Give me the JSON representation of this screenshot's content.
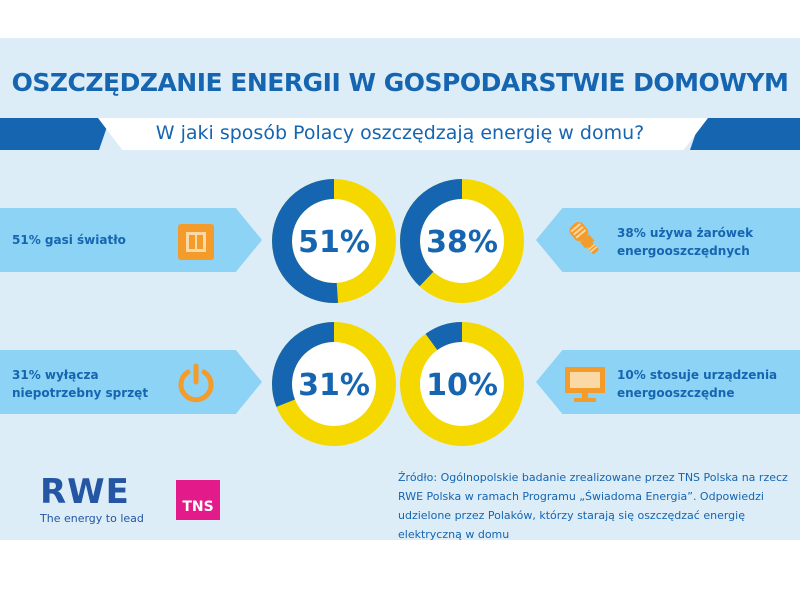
{
  "title": "OSZCZĘDZANIE ENERGII W GOSPODARSTWIE DOMOWYM",
  "subtitle": "W jaki sposób Polacy oszczędzają energię w domu?",
  "colors": {
    "accent_blue": "#1565b0",
    "accent_yellow": "#f5d800",
    "background": "#dcedf8",
    "tag_fill": "#8dd3f6",
    "icon_orange": "#f39c2b"
  },
  "tags": {
    "lights": {
      "line1": "51% gasi światło",
      "icon": "light-switch-icon"
    },
    "bulbs": {
      "line1": "38% używa żarówek",
      "line2": "energooszczędnych",
      "icon": "energy-saving-bulb-icon"
    },
    "devices": {
      "line1": "31% wyłącza",
      "line2": "niepotrzebny sprzęt",
      "icon": "power-button-icon"
    },
    "appliances": {
      "line1": "10% stosuje urządzenia",
      "line2": "energooszczędne",
      "icon": "monitor-icon"
    }
  },
  "chart_data": {
    "type": "pie",
    "style": "donut",
    "charts": [
      {
        "label": "51%",
        "value": 51,
        "remainder": 49
      },
      {
        "label": "38%",
        "value": 38,
        "remainder": 62
      },
      {
        "label": "31%",
        "value": 31,
        "remainder": 69
      },
      {
        "label": "10%",
        "value": 10,
        "remainder": 90
      }
    ],
    "value_color": "#1565b0",
    "remainder_color": "#f5d800"
  },
  "footer": {
    "rwe_logo": "RWE",
    "rwe_tagline": "The energy to lead",
    "tns_logo": "TNS",
    "source": "Źródło: Ogólnopolskie badanie zrealizowane przez TNS Polska na rzecz RWE Polska w ramach Programu „Świadoma Energia”. Odpowiedzi udzielone przez Polaków, którzy starają się oszczędzać energię elektryczną w domu"
  }
}
